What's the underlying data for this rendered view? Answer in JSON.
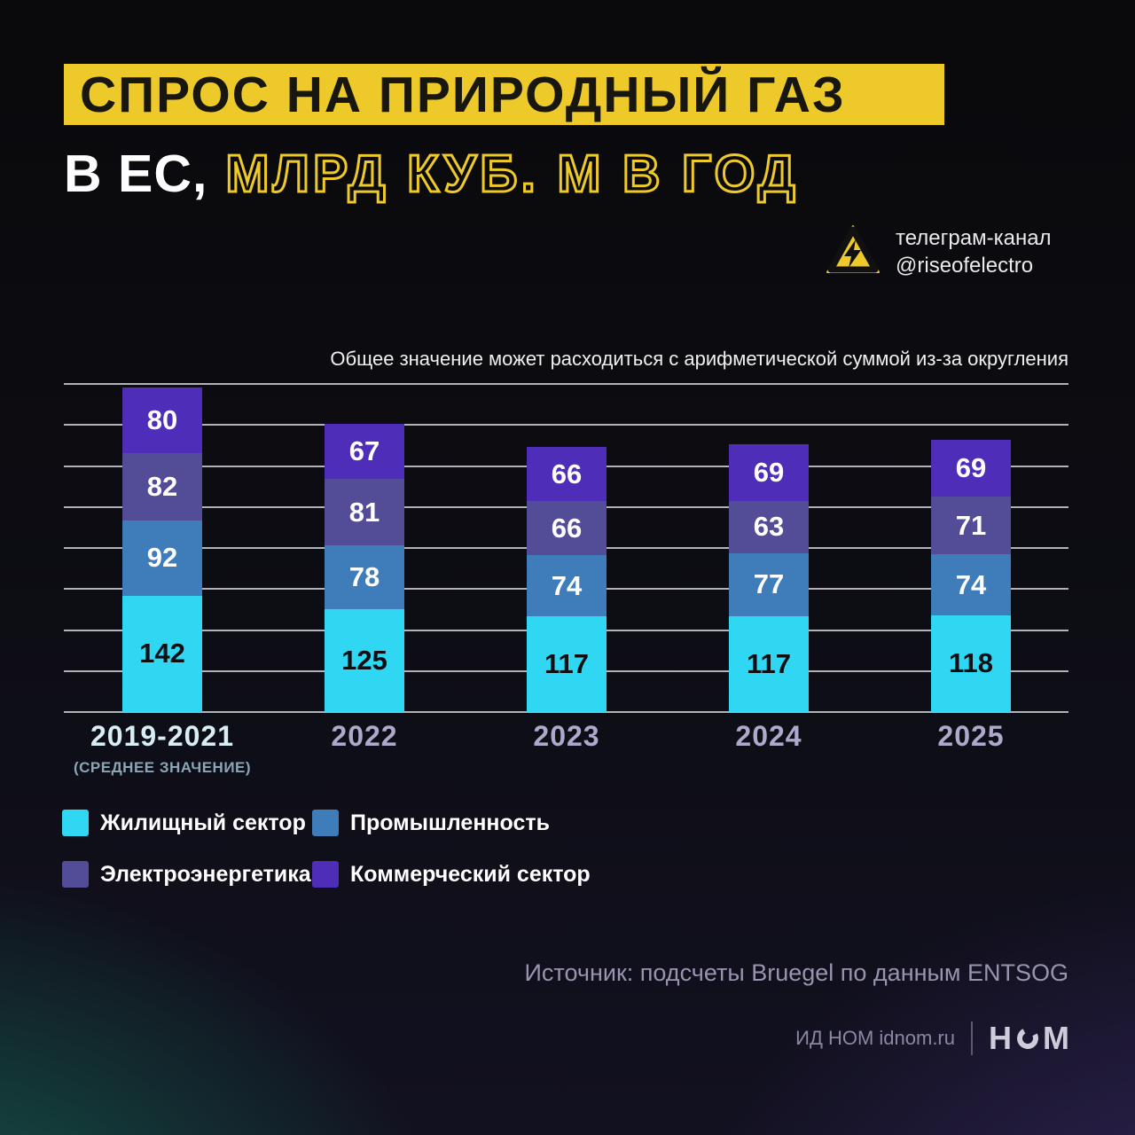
{
  "page": {
    "background_base": "#0b0a10",
    "accent_yellow": "#edc929",
    "corner_glow_left": "#156855",
    "corner_glow_right": "#4a3484"
  },
  "header": {
    "title_highlighted": "СПРОС НА ПРИРОДНЫЙ ГАЗ",
    "subtitle_plain": "В ЕС,",
    "subtitle_outlined": "МЛРД КУБ. М В ГОД"
  },
  "telegram": {
    "line1": "телеграм-канал",
    "line2": "@riseofelectro"
  },
  "note": "Общее значение может расходиться с арифметической суммой из-за округления",
  "chart_data": {
    "type": "bar",
    "stacked": true,
    "title": "Спрос на природный газ в ЕС, млрд куб. м в год",
    "categories": [
      "2019-2021",
      "2022",
      "2023",
      "2024",
      "2025"
    ],
    "sublabels": [
      "(СРЕДНЕЕ ЗНАЧЕНИЕ)",
      "",
      "",
      "",
      ""
    ],
    "ylim": [
      0,
      400
    ],
    "grid_step": 50,
    "grid": true,
    "legend_position": "bottom-left",
    "series": [
      {
        "name": "Жилищный сектор",
        "color": "#2fd7f2",
        "value_color": "#0e0e13",
        "values": [
          142,
          125,
          117,
          117,
          118
        ]
      },
      {
        "name": "Промышленность",
        "color": "#3e7cba",
        "value_color": "#ffffff",
        "values": [
          92,
          78,
          74,
          77,
          74
        ]
      },
      {
        "name": "Электроэнергетика",
        "color": "#534c96",
        "value_color": "#ffffff",
        "values": [
          82,
          81,
          66,
          63,
          71
        ]
      },
      {
        "name": "Коммерческий сектор",
        "color": "#4e2eb9",
        "value_color": "#ffffff",
        "values": [
          80,
          67,
          66,
          69,
          69
        ]
      }
    ],
    "totals": [
      396,
      351,
      323,
      326,
      332
    ]
  },
  "icons": {
    "telegram_badge": "high-voltage-warning-triangle-icon",
    "logo_ring": "logo-letter-o-ring"
  },
  "source": "Источник: подсчеты Bruegel по данным ENTSOG",
  "footer": {
    "publisher": "ИД НОМ idnom.ru",
    "logo_left": "Н",
    "logo_right": "М"
  }
}
